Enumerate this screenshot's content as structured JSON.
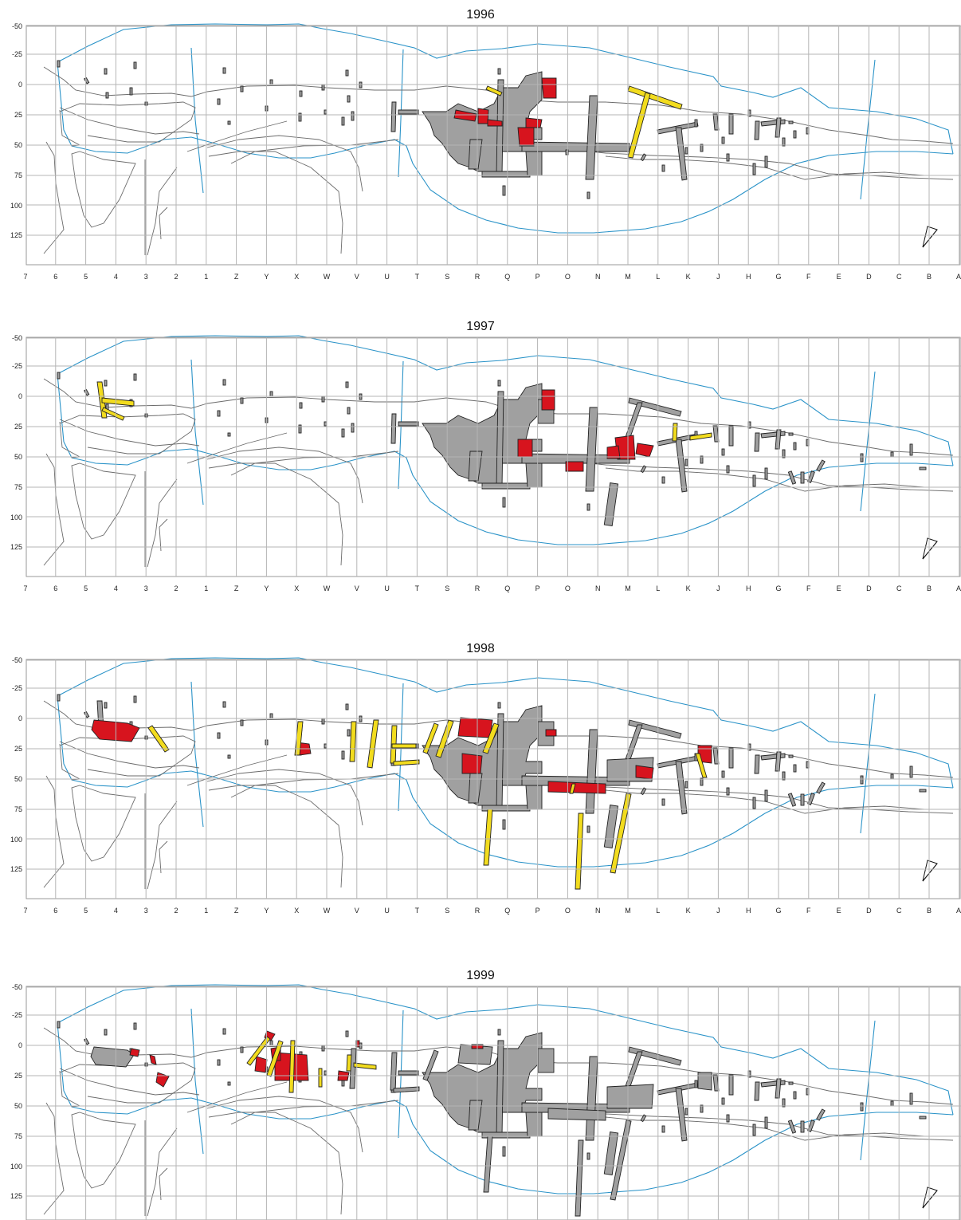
{
  "panels": [
    {
      "title": "1996",
      "columns": [
        "7",
        "6",
        "5",
        "4",
        "3",
        "2",
        "1",
        "Z",
        "Y",
        "X",
        "W",
        "V",
        "U",
        "T",
        "S",
        "R",
        "Q",
        "P",
        "O",
        "N",
        "M",
        "L",
        "K",
        "J",
        "H",
        "G",
        "F",
        "E",
        "D",
        "C",
        "B",
        "A"
      ]
    },
    {
      "title": "1997",
      "columns": [
        "7",
        "6",
        "5",
        "4",
        "3",
        "2",
        "1",
        "Z",
        "Y",
        "X",
        "W",
        "V",
        "U",
        "T",
        "S",
        "R",
        "Q",
        "P",
        "O",
        "N",
        "M",
        "L",
        "K",
        "J",
        "H",
        "G",
        "F",
        "E",
        "D",
        "C",
        "B",
        "A"
      ]
    },
    {
      "title": "1998",
      "columns": [
        "7",
        "6",
        "5",
        "4",
        "3",
        "2",
        "1",
        "Z",
        "Y",
        "X",
        "W",
        "V",
        "U",
        "T",
        "S",
        "R",
        "Q",
        "P",
        "O",
        "N",
        "M",
        "L",
        "K",
        "J",
        "H",
        "G",
        "F",
        "E",
        "D",
        "C",
        "B",
        "A"
      ]
    },
    {
      "title": "1999",
      "columns": []
    }
  ],
  "y_ticks": [
    "-50",
    "-25",
    "0",
    "25",
    "50",
    "75",
    "100",
    "125"
  ],
  "colors": {
    "grid": "#b5b5b5",
    "boundary": "#2a93c8",
    "contour": "#6b6b6b",
    "excavated_earlier": "#a0a0a0",
    "excavated_this_year": "#d7141e",
    "trench_this_year": "#f2dc1e"
  },
  "icons": {
    "north_arrow": "north-arrow-icon"
  }
}
